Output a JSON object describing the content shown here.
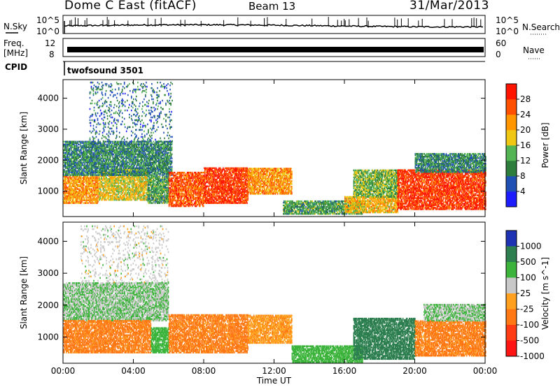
{
  "header": {
    "title": "Dome C East (fitACF)",
    "beam": "Beam 13",
    "date": "31/Mar/2013"
  },
  "status_panels": {
    "nsky": {
      "label": "N.Sky",
      "right_label": "N.Search",
      "left_ticks": [
        "10^5",
        "10^0"
      ],
      "right_ticks": [
        "10^5",
        "10^0"
      ]
    },
    "freq": {
      "label_line1": "Freq.",
      "label_line2": "[MHz]",
      "left_ticks": [
        "12",
        "8"
      ],
      "right_label": "Nave",
      "right_ticks": [
        "60",
        "0"
      ]
    },
    "cpid": {
      "label": "CPID",
      "text": "twofsound 3501"
    }
  },
  "colors": {
    "power_scale": [
      "#1c1cff",
      "#1f50b4",
      "#2d7d3c",
      "#52b452",
      "#f0c814",
      "#ff9600",
      "#ff5000",
      "#ff1400"
    ],
    "velocity_scale": [
      "#1e32b4",
      "#2d7f50",
      "#3cb43c",
      "#c8c8c8",
      "#ffa01e",
      "#ff7814",
      "#ff3c14",
      "#ff1414"
    ]
  },
  "chart_data": [
    {
      "type": "heatmap",
      "title": "",
      "xlabel": "",
      "ylabel": "Slant Range [km]",
      "x_ticks": [
        "00:00",
        "04:00",
        "08:00",
        "12:00",
        "16:00",
        "20:00",
        "00:00"
      ],
      "y_ticks": [
        1000,
        2000,
        3000,
        4000
      ],
      "ylim": [
        180,
        4600
      ],
      "colorbar": {
        "label": "Power [dB]",
        "ticks": [
          "4",
          "8",
          "12",
          "16",
          "20",
          "24",
          "28"
        ],
        "range": [
          0,
          32
        ]
      },
      "regions": [
        {
          "t0": 0,
          "t1": 2.0,
          "r0": 600,
          "r1": 1500,
          "level": 22
        },
        {
          "t0": 2.0,
          "t1": 4.8,
          "r0": 700,
          "r1": 1700,
          "level": 18
        },
        {
          "t0": 0,
          "t1": 6.2,
          "r0": 1500,
          "r1": 2600,
          "level": 10
        },
        {
          "t0": 4.8,
          "t1": 6.0,
          "r0": 600,
          "r1": 1500,
          "level": 12
        },
        {
          "t0": 6.0,
          "t1": 8.0,
          "r0": 500,
          "r1": 1600,
          "level": 26
        },
        {
          "t0": 8.0,
          "t1": 10.5,
          "r0": 600,
          "r1": 1750,
          "level": 28
        },
        {
          "t0": 10.5,
          "t1": 13.0,
          "r0": 900,
          "r1": 1750,
          "level": 22
        },
        {
          "t0": 12.5,
          "t1": 17.0,
          "r0": 250,
          "r1": 700,
          "level": 12
        },
        {
          "t0": 16.0,
          "t1": 19.0,
          "r0": 300,
          "r1": 800,
          "level": 20
        },
        {
          "t0": 16.5,
          "t1": 19.0,
          "r0": 800,
          "r1": 1700,
          "level": 14
        },
        {
          "t0": 19.0,
          "t1": 24.0,
          "r0": 400,
          "r1": 1700,
          "level": 28
        },
        {
          "t0": 20.0,
          "t1": 24.0,
          "r0": 1600,
          "r1": 2200,
          "level": 10
        },
        {
          "t0": 1.5,
          "t1": 6.2,
          "r0": 2600,
          "r1": 4500,
          "level": 8
        }
      ]
    },
    {
      "type": "heatmap",
      "title": "",
      "xlabel": "Time UT",
      "ylabel": "Slant Range [km]",
      "x_ticks": [
        "00:00",
        "04:00",
        "08:00",
        "12:00",
        "16:00",
        "20:00",
        "00:00"
      ],
      "y_ticks": [
        1000,
        2000,
        3000,
        4000
      ],
      "ylim": [
        180,
        4600
      ],
      "colorbar": {
        "label": "Velocity [m s^-1]",
        "ticks": [
          "1000",
          "500",
          "100",
          "25",
          "-25",
          "-100",
          "-500",
          "-1000"
        ],
        "range": [
          -1000,
          1000
        ]
      },
      "regions": [
        {
          "t0": 0,
          "t1": 6.0,
          "r0": 1500,
          "r1": 2700,
          "level": 25
        },
        {
          "t0": 0,
          "t1": 5.0,
          "r0": 500,
          "r1": 1500,
          "level": -150
        },
        {
          "t0": 5.0,
          "t1": 6.0,
          "r0": 500,
          "r1": 1300,
          "level": 60
        },
        {
          "t0": 6.0,
          "t1": 10.5,
          "r0": 500,
          "r1": 1700,
          "level": -150
        },
        {
          "t0": 10.5,
          "t1": 13.0,
          "r0": 800,
          "r1": 1700,
          "level": -80
        },
        {
          "t0": 13.0,
          "t1": 17.0,
          "r0": 200,
          "r1": 700,
          "level": 60
        },
        {
          "t0": 16.5,
          "t1": 20.0,
          "r0": 300,
          "r1": 1600,
          "level": 200
        },
        {
          "t0": 20.0,
          "t1": 24.0,
          "r0": 400,
          "r1": 1500,
          "level": -150
        },
        {
          "t0": 20.5,
          "t1": 24.0,
          "r0": 1500,
          "r1": 2000,
          "level": 25
        },
        {
          "t0": 1.0,
          "t1": 6.0,
          "r0": 2700,
          "r1": 4500,
          "level": 0
        }
      ]
    }
  ]
}
